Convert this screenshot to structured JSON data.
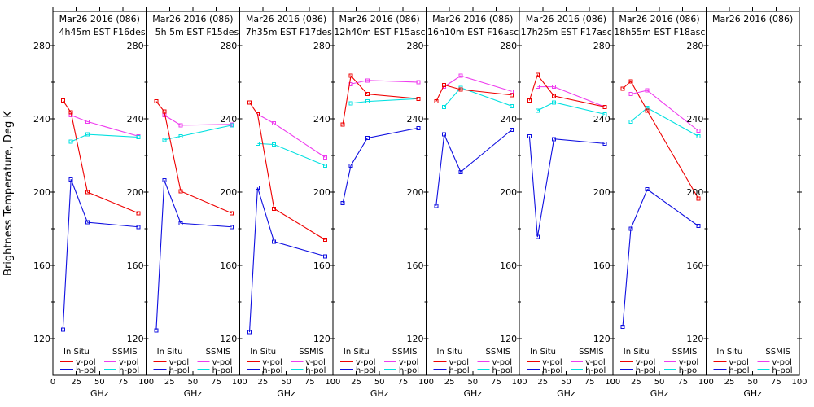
{
  "figure": {
    "ylabel": "Brightness Temperature, Deg K",
    "xlabel": "GHz",
    "yticks": [
      120,
      160,
      200,
      240,
      280
    ],
    "yminor": [
      140,
      180,
      220,
      260
    ],
    "xticks": [
      0,
      25,
      50,
      75,
      100
    ],
    "xlim": [
      0,
      100
    ],
    "insitu_freqs_ghz": [
      10.7,
      19.35,
      37.0,
      91.7
    ],
    "ssmis_freqs_ghz": [
      19.35,
      37.0,
      91.7
    ],
    "legend": {
      "col1": "In Situ",
      "col2": "SSMIS",
      "vpol": "v-pol",
      "hpol": "h-pol"
    },
    "colors": {
      "insitu_v": "#ee0000",
      "insitu_h": "#0f0fe0",
      "ssmis_v": "#ee3cee",
      "ssmis_h": "#00e0e0",
      "foreground": "#000000",
      "background": "#ffffff"
    }
  },
  "chart_data": [
    {
      "type": "line",
      "title": "Mar26 2016 (086)",
      "subtitle": "4h45m EST F16des",
      "series": [
        {
          "name": "In Situ v-pol",
          "group": "insitu",
          "pol": "v",
          "values": [
            250,
            243.5,
            200,
            188.5
          ]
        },
        {
          "name": "In Situ h-pol",
          "group": "insitu",
          "pol": "h",
          "values": [
            125,
            207,
            183.5,
            181
          ]
        },
        {
          "name": "SSMIS v-pol",
          "group": "ssmis",
          "pol": "v",
          "values": [
            242,
            238.5,
            230.5
          ]
        },
        {
          "name": "SSMIS h-pol",
          "group": "ssmis",
          "pol": "h",
          "values": [
            227.5,
            231.5,
            230
          ]
        }
      ]
    },
    {
      "type": "line",
      "title": "Mar26 2016 (086)",
      "subtitle": "5h 5m EST F15des",
      "series": [
        {
          "name": "In Situ v-pol",
          "group": "insitu",
          "pol": "v",
          "values": [
            249.5,
            244,
            200.5,
            188.5
          ]
        },
        {
          "name": "In Situ h-pol",
          "group": "insitu",
          "pol": "h",
          "values": [
            124.5,
            206.5,
            183,
            181
          ]
        },
        {
          "name": "SSMIS v-pol",
          "group": "ssmis",
          "pol": "v",
          "values": [
            242,
            236.5,
            237
          ]
        },
        {
          "name": "SSMIS h-pol",
          "group": "ssmis",
          "pol": "h",
          "values": [
            228.5,
            230.5,
            236.5
          ]
        }
      ]
    },
    {
      "type": "line",
      "title": "Mar26 2016 (086)",
      "subtitle": "7h35m EST F17des",
      "series": [
        {
          "name": "In Situ v-pol",
          "group": "insitu",
          "pol": "v",
          "values": [
            249,
            242.5,
            191,
            174
          ]
        },
        {
          "name": "In Situ h-pol",
          "group": "insitu",
          "pol": "h",
          "values": [
            123.5,
            202.5,
            173,
            165
          ]
        },
        {
          "name": "SSMIS v-pol",
          "group": "ssmis",
          "pol": "v",
          "values": [
            242.5,
            237.5,
            219
          ]
        },
        {
          "name": "SSMIS h-pol",
          "group": "ssmis",
          "pol": "h",
          "values": [
            226.5,
            226,
            214.5
          ]
        }
      ]
    },
    {
      "type": "line",
      "title": "Mar26 2016 (086)",
      "subtitle": "12h40m EST F15asc",
      "series": [
        {
          "name": "In Situ v-pol",
          "group": "insitu",
          "pol": "v",
          "values": [
            237,
            263.5,
            253.5,
            251
          ]
        },
        {
          "name": "In Situ h-pol",
          "group": "insitu",
          "pol": "h",
          "values": [
            194,
            214.5,
            229.5,
            235
          ]
        },
        {
          "name": "SSMIS v-pol",
          "group": "ssmis",
          "pol": "v",
          "values": [
            259,
            261,
            260
          ]
        },
        {
          "name": "SSMIS h-pol",
          "group": "ssmis",
          "pol": "h",
          "values": [
            248.5,
            249.5,
            251
          ]
        }
      ]
    },
    {
      "type": "line",
      "title": "Mar26 2016 (086)",
      "subtitle": "16h10m EST F16asc",
      "series": [
        {
          "name": "In Situ v-pol",
          "group": "insitu",
          "pol": "v",
          "values": [
            249.5,
            258.5,
            256,
            253
          ]
        },
        {
          "name": "In Situ h-pol",
          "group": "insitu",
          "pol": "h",
          "values": [
            192.5,
            231.5,
            211,
            234
          ]
        },
        {
          "name": "SSMIS v-pol",
          "group": "ssmis",
          "pol": "v",
          "values": [
            257.5,
            263.5,
            255
          ]
        },
        {
          "name": "SSMIS h-pol",
          "group": "ssmis",
          "pol": "h",
          "values": [
            246.5,
            257,
            247
          ]
        }
      ]
    },
    {
      "type": "line",
      "title": "Mar26 2016 (086)",
      "subtitle": "17h25m EST F17asc",
      "series": [
        {
          "name": "In Situ v-pol",
          "group": "insitu",
          "pol": "v",
          "values": [
            250,
            264,
            252.5,
            246.5
          ]
        },
        {
          "name": "In Situ h-pol",
          "group": "insitu",
          "pol": "h",
          "values": [
            230.5,
            175.5,
            229,
            226.5
          ]
        },
        {
          "name": "SSMIS v-pol",
          "group": "ssmis",
          "pol": "v",
          "values": [
            257.5,
            257.5,
            246.5
          ]
        },
        {
          "name": "SSMIS h-pol",
          "group": "ssmis",
          "pol": "h",
          "values": [
            244.5,
            249,
            242.5
          ]
        }
      ]
    },
    {
      "type": "line",
      "title": "Mar26 2016 (086)",
      "subtitle": "18h55m EST F18asc",
      "series": [
        {
          "name": "In Situ v-pol",
          "group": "insitu",
          "pol": "v",
          "values": [
            256.5,
            260.5,
            244.5,
            196.5
          ]
        },
        {
          "name": "In Situ h-pol",
          "group": "insitu",
          "pol": "h",
          "values": [
            126.5,
            180,
            201.5,
            181.5
          ]
        },
        {
          "name": "SSMIS v-pol",
          "group": "ssmis",
          "pol": "v",
          "values": [
            253.5,
            255.5,
            233.5
          ]
        },
        {
          "name": "SSMIS h-pol",
          "group": "ssmis",
          "pol": "h",
          "values": [
            238.5,
            246,
            230.5
          ]
        }
      ]
    },
    {
      "type": "line",
      "title": "Mar26 2016 (086)",
      "subtitle": "",
      "series": []
    }
  ]
}
